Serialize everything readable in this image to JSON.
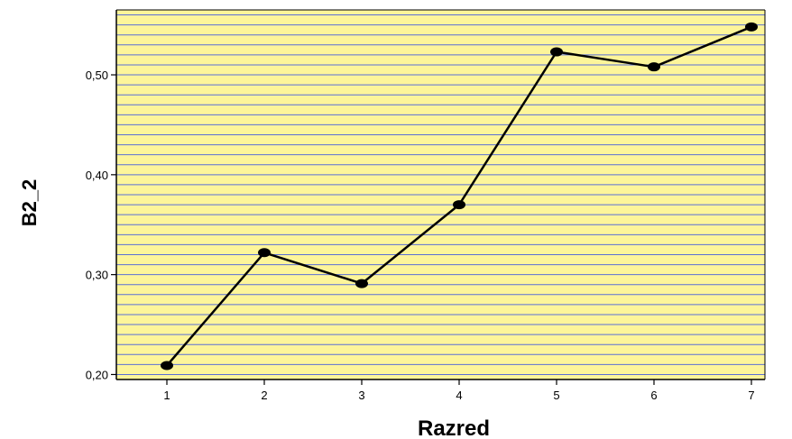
{
  "chart_data": {
    "type": "line",
    "title": "",
    "xlabel": "Razred",
    "ylabel": "B2_2",
    "x": [
      "1",
      "2",
      "3",
      "4",
      "5",
      "6",
      "7"
    ],
    "series": [
      {
        "values": [
          0.209,
          0.322,
          0.291,
          0.37,
          0.523,
          0.508,
          0.548
        ]
      }
    ],
    "ylim": [
      0.195,
      0.565
    ],
    "yticks": [
      0.2,
      0.3,
      0.4,
      0.5
    ],
    "ytick_labels": [
      "0,20",
      "0,30",
      "0,40",
      "0,50"
    ],
    "grid": true,
    "grid_step": 0.01,
    "colors": {
      "plot_background": "#fdf59a",
      "grid_line": "#5b6fd6",
      "line": "#000000",
      "marker": "#000000"
    }
  }
}
